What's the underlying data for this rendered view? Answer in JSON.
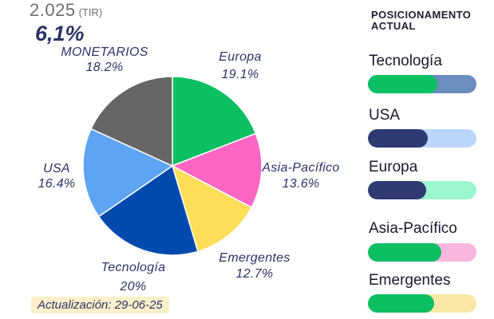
{
  "header": {
    "year": "2.025",
    "tir_label": "(TIR)",
    "tir_value": "6,1%"
  },
  "chart_data": {
    "type": "pie",
    "slices": [
      {
        "label": "Europa",
        "value": 19.1,
        "pct_text": "19.1%",
        "color": "#0cbf63"
      },
      {
        "label": "Asia-Pacífico",
        "value": 13.6,
        "pct_text": "13.6%",
        "color": "#ff66c4"
      },
      {
        "label": "Emergentes",
        "value": 12.7,
        "pct_text": "12.7%",
        "color": "#ffde59"
      },
      {
        "label": "Tecnología",
        "value": 20,
        "pct_text": "20%",
        "color": "#004aad"
      },
      {
        "label": "USA",
        "value": 16.4,
        "pct_text": "16.4%",
        "color": "#5ea4f5"
      },
      {
        "label": "MONETARIOS",
        "value": 18.2,
        "pct_text": "18.2%",
        "color": "#666666"
      }
    ]
  },
  "update_badge": "Actualización: 29-06-25",
  "positioning": {
    "title": "POSICIONAMENTO ACTUAL",
    "rows": [
      {
        "label": "Tecnología",
        "fill_fraction": 0.64,
        "fill_color": "#0cbf63",
        "track_color": "#6b8ebf"
      },
      {
        "label": "USA",
        "fill_fraction": 0.55,
        "fill_color": "#2f3a72",
        "track_color": "#bcd6fb"
      },
      {
        "label": "Europa",
        "fill_fraction": 0.54,
        "fill_color": "#2f3a72",
        "track_color": "#9af7ce"
      },
      {
        "label": "Asia-Pacífico",
        "fill_fraction": 0.68,
        "fill_color": "#0cbf63",
        "track_color": "#f7b6dd"
      },
      {
        "label": "Emergentes",
        "fill_fraction": 0.61,
        "fill_color": "#0cbf63",
        "track_color": "#f9e8a6"
      }
    ]
  }
}
